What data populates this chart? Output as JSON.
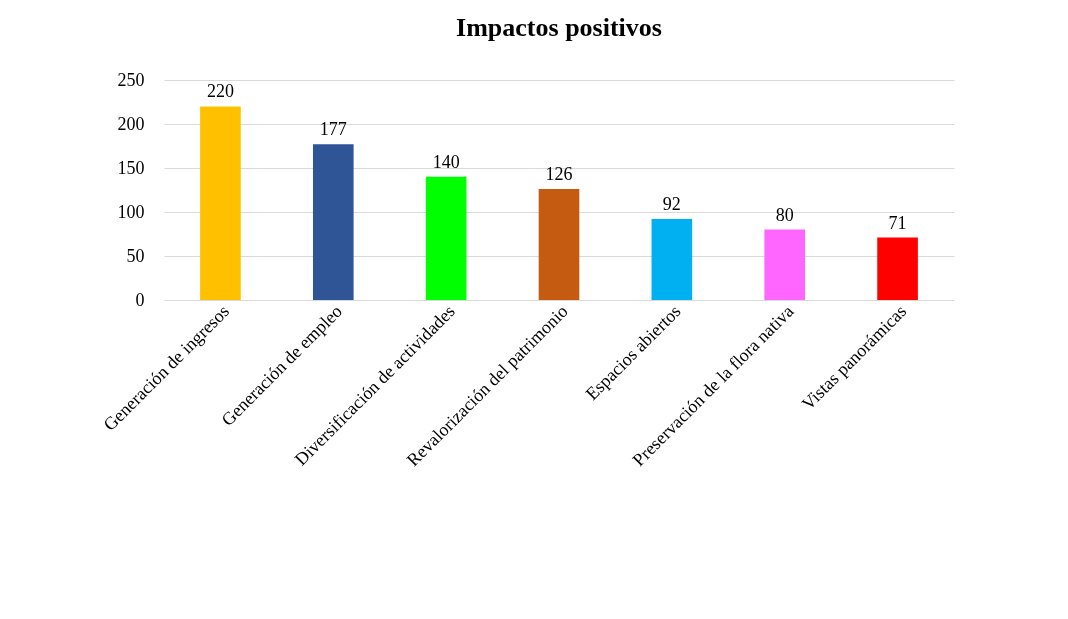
{
  "chart_data": {
    "type": "bar",
    "title": "Impactos positivos",
    "categories": [
      "Generación de ingresos",
      "Generación de empleo",
      "Diversificación de actividades",
      "Revalorización del patrimonio",
      "Espacios abiertos",
      "Preservación de la flora nativa",
      "Vistas panorámicas"
    ],
    "values": [
      220,
      177,
      140,
      126,
      92,
      80,
      71
    ],
    "colors": [
      "#ffc000",
      "#2f5597",
      "#00ff00",
      "#c55a11",
      "#00b0f0",
      "#ff66ff",
      "#ff0000"
    ],
    "ylim": [
      0,
      250
    ],
    "yticks": [
      0,
      50,
      100,
      150,
      200,
      250
    ],
    "grid": "y",
    "data_labels": true
  }
}
